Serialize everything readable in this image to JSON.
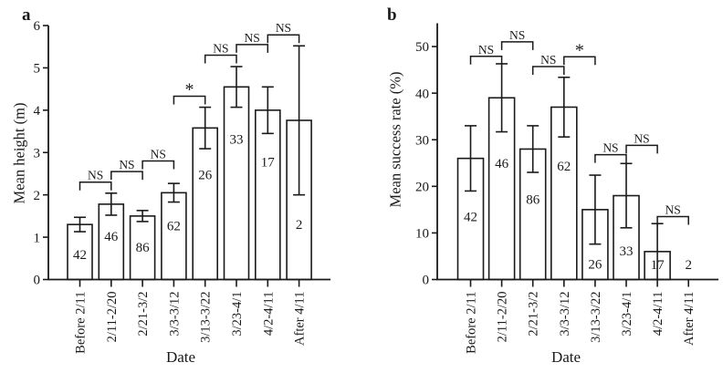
{
  "ink": "#1a1a1a",
  "background": "#ffffff",
  "chart_data": [
    {
      "type": "bar",
      "panel_label": "a",
      "title": "",
      "xlabel": "Date",
      "ylabel": "Mean height (m)",
      "ylim": [
        0,
        6
      ],
      "yticks": [
        0,
        1,
        2,
        3,
        4,
        5,
        6
      ],
      "grid": false,
      "legend": "none",
      "bar_fill": "#ffffff",
      "categories": [
        "Before 2/11",
        "2/11-2/20",
        "2/21-3/2",
        "3/3-3/12",
        "3/13-3/22",
        "3/23-4/1",
        "4/2-4/11",
        "After 4/11"
      ],
      "values": [
        1.3,
        1.78,
        1.5,
        2.05,
        3.58,
        4.55,
        4.0,
        3.76
      ],
      "errors": [
        0.17,
        0.26,
        0.13,
        0.22,
        0.49,
        0.48,
        0.55,
        1.76
      ],
      "sample_sizes": [
        42,
        46,
        86,
        62,
        26,
        33,
        17,
        2
      ],
      "sample_label_y": [
        0.6,
        1.03,
        0.77,
        1.28,
        2.48,
        3.32,
        2.78,
        1.31
      ],
      "significance_brackets": [
        {
          "between": [
            0,
            1
          ],
          "y": 2.3,
          "label": "NS"
        },
        {
          "between": [
            1,
            2
          ],
          "y": 2.55,
          "label": "NS"
        },
        {
          "between": [
            2,
            3
          ],
          "y": 2.8,
          "label": "NS"
        },
        {
          "between": [
            3,
            4
          ],
          "y": 4.33,
          "label": "*"
        },
        {
          "between": [
            4,
            5
          ],
          "y": 5.3,
          "label": "NS"
        },
        {
          "between": [
            5,
            6
          ],
          "y": 5.55,
          "label": "NS"
        },
        {
          "between": [
            6,
            7
          ],
          "y": 5.78,
          "label": "NS"
        }
      ]
    },
    {
      "type": "bar",
      "panel_label": "b",
      "title": "",
      "xlabel": "Date",
      "ylabel": "Mean success rate (%)",
      "ylim": [
        0,
        55
      ],
      "yticks": [
        0,
        10,
        20,
        30,
        40,
        50
      ],
      "grid": false,
      "legend": "none",
      "bar_fill": "#ffffff",
      "categories": [
        "Before 2/11",
        "2/11-2/20",
        "2/21-3/2",
        "3/3-3/12",
        "3/13-3/22",
        "3/23-4/1",
        "4/2-4/11",
        "After 4/11"
      ],
      "values": [
        26,
        39,
        28,
        37,
        15,
        18,
        6,
        0
      ],
      "errors": [
        7,
        7.3,
        5,
        6.4,
        7.4,
        6.9,
        6,
        0
      ],
      "sample_sizes": [
        42,
        46,
        86,
        62,
        26,
        33,
        17,
        2
      ],
      "sample_label_y": [
        13.5,
        25,
        17.3,
        24.4,
        3.4,
        6.2,
        3.3,
        3.3
      ],
      "significance_brackets": [
        {
          "between": [
            0,
            1
          ],
          "y": 47.9,
          "label": "NS"
        },
        {
          "between": [
            1,
            2
          ],
          "y": 51.0,
          "label": "NS"
        },
        {
          "between": [
            2,
            3
          ],
          "y": 45.7,
          "label": "NS"
        },
        {
          "between": [
            3,
            4
          ],
          "y": 47.8,
          "label": "*"
        },
        {
          "between": [
            4,
            5
          ],
          "y": 26.8,
          "label": "NS"
        },
        {
          "between": [
            5,
            6
          ],
          "y": 28.8,
          "label": "NS"
        },
        {
          "between": [
            6,
            7
          ],
          "y": 13.5,
          "label": "NS"
        }
      ]
    }
  ]
}
